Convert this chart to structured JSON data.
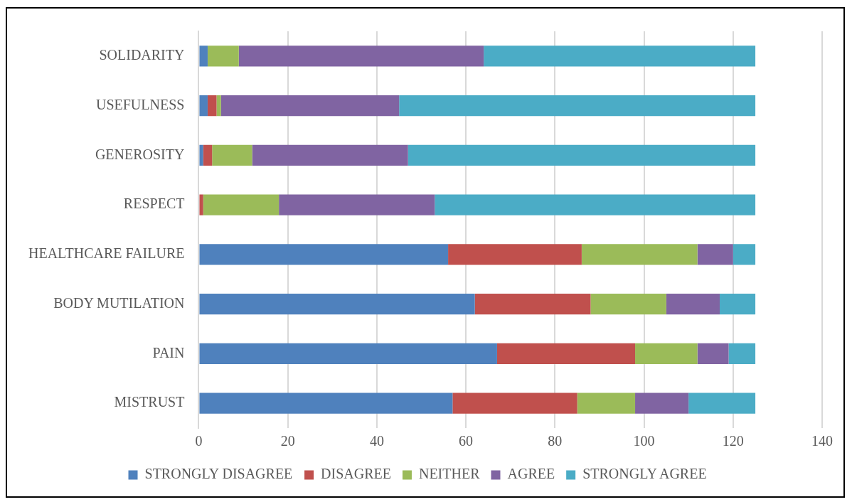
{
  "chart_data": {
    "type": "bar",
    "orientation": "horizontal",
    "stacked": true,
    "categories": [
      "SOLIDARITY",
      "USEFULNESS",
      "GENEROSITY",
      "RESPECT",
      "HEALTHCARE FAILURE",
      "BODY MUTILATION",
      "PAIN",
      "MISTRUST"
    ],
    "series": [
      {
        "name": "STRONGLY DISAGREE",
        "color": "#4f81bd",
        "values": [
          2,
          2,
          1,
          0,
          56,
          62,
          67,
          57
        ]
      },
      {
        "name": "DISAGREE",
        "color": "#c0504d",
        "values": [
          0,
          2,
          2,
          1,
          30,
          26,
          31,
          28
        ]
      },
      {
        "name": "NEITHER",
        "color": "#9bbb59",
        "values": [
          7,
          1,
          9,
          17,
          26,
          17,
          14,
          13
        ]
      },
      {
        "name": "AGREE",
        "color": "#8064a2",
        "values": [
          55,
          40,
          35,
          35,
          8,
          12,
          7,
          12
        ]
      },
      {
        "name": "STRONGLY AGREE",
        "color": "#4bacc6",
        "values": [
          61,
          80,
          78,
          72,
          5,
          8,
          6,
          15
        ]
      }
    ],
    "xlim": [
      0,
      140
    ],
    "xticks": [
      0,
      20,
      40,
      60,
      80,
      100,
      120,
      140
    ],
    "grid": "x",
    "legend": "bottom"
  }
}
